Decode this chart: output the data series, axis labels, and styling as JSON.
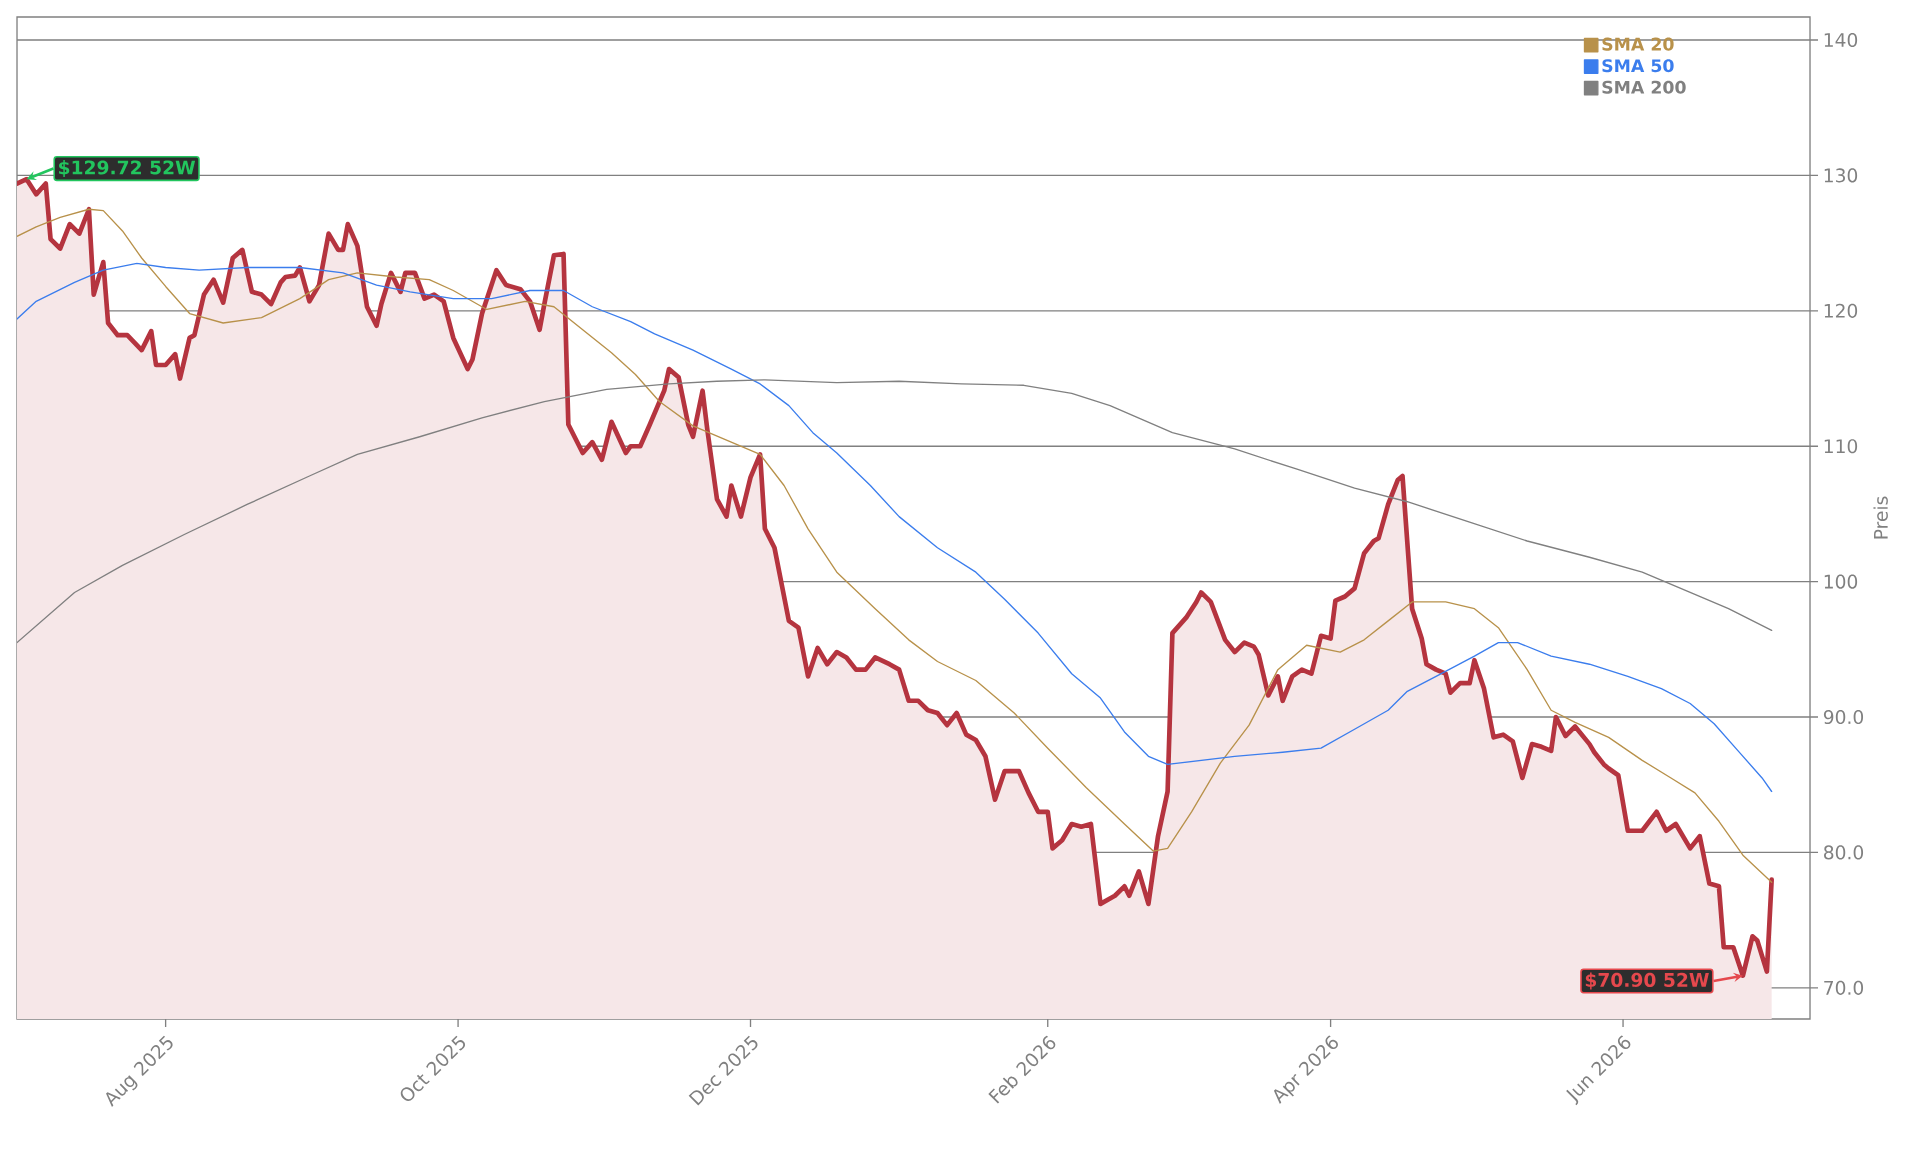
{
  "chart_data": {
    "type": "line",
    "ylabel": "Preis",
    "xlim": [
      "2025-07-01",
      "2026-07-10"
    ],
    "ylim": [
      67.7,
      141.7
    ],
    "xticks": [
      {
        "value": "2025-08-01",
        "label": "Aug 2025"
      },
      {
        "value": "2025-10-01",
        "label": "Oct 2025"
      },
      {
        "value": "2025-12-01",
        "label": "Dec 2025"
      },
      {
        "value": "2026-02-01",
        "label": "Feb 2026"
      },
      {
        "value": "2026-04-01",
        "label": "Apr 2026"
      },
      {
        "value": "2026-06-01",
        "label": "Jun 2026"
      }
    ],
    "yticks": [
      {
        "value": 70,
        "label": "70.0"
      },
      {
        "value": 80,
        "label": "80.0"
      },
      {
        "value": 90,
        "label": "90.0"
      },
      100,
      110,
      120,
      130,
      140
    ],
    "grid": "y",
    "legend": "top right",
    "annotations": [
      {
        "text": "$129.72 52W",
        "x": "2025-07-03",
        "y": 129.72
      },
      {
        "text": "$70.90 52W",
        "x": "2026-06-26",
        "y": 70.9
      }
    ],
    "series": [
      {
        "type": "area",
        "color": "#b5343f",
        "x": [
          "2025-07-01",
          "2025-07-03",
          "2025-07-05",
          "2025-07-07",
          "2025-07-08",
          "2025-07-10",
          "2025-07-12",
          "2025-07-14",
          "2025-07-16",
          "2025-07-17",
          "2025-07-19",
          "2025-07-20",
          "2025-07-22",
          "2025-07-24",
          "2025-07-27",
          "2025-07-29",
          "2025-07-30",
          "2025-08-01",
          "2025-08-03",
          "2025-08-04",
          "2025-08-06",
          "2025-08-07",
          "2025-08-09",
          "2025-08-11",
          "2025-08-13",
          "2025-08-15",
          "2025-08-17",
          "2025-08-19",
          "2025-08-21",
          "2025-08-23",
          "2025-08-25",
          "2025-08-26",
          "2025-08-28",
          "2025-08-29",
          "2025-08-31",
          "2025-09-02",
          "2025-09-04",
          "2025-09-06",
          "2025-09-07",
          "2025-09-08",
          "2025-09-10",
          "2025-09-12",
          "2025-09-14",
          "2025-09-15",
          "2025-09-17",
          "2025-09-19",
          "2025-09-20",
          "2025-09-22",
          "2025-09-24",
          "2025-09-26",
          "2025-09-28",
          "2025-09-30",
          "2025-10-03",
          "2025-10-04",
          "2025-10-06",
          "2025-10-09",
          "2025-10-11",
          "2025-10-14",
          "2025-10-16",
          "2025-10-18",
          "2025-10-19",
          "2025-10-21",
          "2025-10-23",
          "2025-10-24",
          "2025-10-27",
          "2025-10-29",
          "2025-10-31",
          "2025-11-02",
          "2025-11-05",
          "2025-11-06",
          "2025-11-08",
          "2025-11-10",
          "2025-11-13",
          "2025-11-14",
          "2025-11-16",
          "2025-11-18",
          "2025-11-19",
          "2025-11-21",
          "2025-11-22",
          "2025-11-24",
          "2025-11-26",
          "2025-11-27",
          "2025-11-29",
          "2025-12-01",
          "2025-12-03",
          "2025-12-04",
          "2025-12-06",
          "2025-12-09",
          "2025-12-11",
          "2025-12-13",
          "2025-12-15",
          "2025-12-17",
          "2025-12-19",
          "2025-12-21",
          "2025-12-23",
          "2025-12-25",
          "2025-12-27",
          "2025-12-30",
          "2026-01-01",
          "2026-01-03",
          "2026-01-05",
          "2026-01-07",
          "2026-01-09",
          "2026-01-11",
          "2026-01-13",
          "2026-01-15",
          "2026-01-17",
          "2026-01-19",
          "2026-01-21",
          "2026-01-23",
          "2026-01-26",
          "2026-01-28",
          "2026-01-30",
          "2026-02-01",
          "2026-02-02",
          "2026-02-04",
          "2026-02-06",
          "2026-02-08",
          "2026-02-10",
          "2026-02-12",
          "2026-02-15",
          "2026-02-17",
          "2026-02-18",
          "2026-02-20",
          "2026-02-22",
          "2026-02-24",
          "2026-02-26",
          "2026-02-27",
          "2026-03-02",
          "2026-03-04",
          "2026-03-05",
          "2026-03-07",
          "2026-03-10",
          "2026-03-12",
          "2026-03-14",
          "2026-03-16",
          "2026-03-17",
          "2026-03-19",
          "2026-03-21",
          "2026-03-22",
          "2026-03-24",
          "2026-03-26",
          "2026-03-28",
          "2026-03-30",
          "2026-04-01",
          "2026-04-02",
          "2026-04-04",
          "2026-04-06",
          "2026-04-08",
          "2026-04-10",
          "2026-04-11",
          "2026-04-13",
          "2026-04-15",
          "2026-04-16",
          "2026-04-18",
          "2026-04-20",
          "2026-04-21",
          "2026-04-23",
          "2026-04-25",
          "2026-04-26",
          "2026-04-28",
          "2026-04-30",
          "2026-05-01",
          "2026-05-03",
          "2026-05-05",
          "2026-05-07",
          "2026-05-09",
          "2026-05-11",
          "2026-05-13",
          "2026-05-15",
          "2026-05-17",
          "2026-05-18",
          "2026-05-20",
          "2026-05-22",
          "2026-05-25",
          "2026-05-26",
          "2026-05-28",
          "2026-05-29",
          "2026-05-31",
          "2026-06-02",
          "2026-06-05",
          "2026-06-08",
          "2026-06-10",
          "2026-06-12",
          "2026-06-15",
          "2026-06-17",
          "2026-06-19",
          "2026-06-21",
          "2026-06-22",
          "2026-06-24",
          "2026-06-26",
          "2026-06-28",
          "2026-06-29",
          "2026-07-01",
          "2026-07-02"
        ],
        "values": [
          129.4,
          129.72,
          128.6,
          129.4,
          125.3,
          124.6,
          126.4,
          125.7,
          127.5,
          121.2,
          123.6,
          119.1,
          118.2,
          118.2,
          117.1,
          118.5,
          116,
          116,
          116.8,
          115,
          118,
          118.2,
          121.2,
          122.3,
          120.6,
          123.9,
          124.5,
          121.4,
          121.2,
          120.5,
          122.1,
          122.5,
          122.6,
          123.2,
          120.7,
          121.9,
          125.7,
          124.5,
          124.5,
          126.4,
          124.8,
          120.3,
          118.9,
          120.5,
          122.8,
          121.4,
          122.8,
          122.8,
          120.9,
          121.2,
          120.7,
          118,
          115.7,
          116.4,
          119.8,
          123,
          121.9,
          121.6,
          120.7,
          118.6,
          120.5,
          124.1,
          124.2,
          111.6,
          109.5,
          110.3,
          109,
          111.8,
          109.5,
          110,
          110,
          111.6,
          114.1,
          115.7,
          115.1,
          111.6,
          110.7,
          114.1,
          111.2,
          106.1,
          104.8,
          107.1,
          104.8,
          107.7,
          109.4,
          103.9,
          102.5,
          97.1,
          96.6,
          93,
          95.1,
          93.9,
          94.8,
          94.4,
          93.5,
          93.5,
          94.4,
          93.9,
          93.5,
          91.2,
          91.2,
          90.5,
          90.3,
          89.4,
          90.3,
          88.7,
          88.3,
          87.1,
          83.9,
          86,
          86,
          84.4,
          83,
          83,
          80.3,
          80.9,
          82.1,
          81.9,
          82.1,
          76.2,
          76.8,
          77.5,
          76.8,
          78.6,
          76.2,
          81.2,
          84.5,
          96.2,
          97.4,
          98.5,
          99.2,
          98.5,
          95.7,
          94.8,
          95.5,
          95.2,
          94.6,
          91.6,
          93,
          91.2,
          93,
          93.5,
          93.2,
          96,
          95.8,
          98.6,
          98.9,
          99.5,
          102.1,
          103,
          103.2,
          105.7,
          107.5,
          107.8,
          98,
          95.8,
          93.9,
          93.5,
          93.2,
          91.8,
          92.5,
          92.5,
          94.2,
          92.1,
          88.5,
          88.7,
          88.2,
          85.5,
          88,
          87.8,
          87.5,
          90,
          88.6,
          89.3,
          88,
          87.4,
          86.5,
          86.2,
          85.7,
          81.6,
          81.6,
          83,
          81.6,
          82.1,
          80.3,
          81.2,
          77.7,
          77.5,
          73,
          73,
          70.9,
          73.8,
          73.5,
          71.2,
          78
        ]
      },
      {
        "name": "SMA 20",
        "color": "#b8914a",
        "x": [
          "2025-07-01",
          "2025-07-05",
          "2025-07-10",
          "2025-07-16",
          "2025-07-19",
          "2025-07-23",
          "2025-07-27",
          "2025-08-01",
          "2025-08-06",
          "2025-08-13",
          "2025-08-21",
          "2025-08-29",
          "2025-09-04",
          "2025-09-10",
          "2025-09-18",
          "2025-09-25",
          "2025-09-30",
          "2025-10-07",
          "2025-10-15",
          "2025-10-21",
          "2025-10-27",
          "2025-11-02",
          "2025-11-07",
          "2025-11-12",
          "2025-11-19",
          "2025-11-27",
          "2025-12-03",
          "2025-12-08",
          "2025-12-13",
          "2025-12-19",
          "2025-12-27",
          "2026-01-03",
          "2026-01-09",
          "2026-01-17",
          "2026-01-25",
          "2026-02-01",
          "2026-02-09",
          "2026-02-17",
          "2026-02-23",
          "2026-02-26",
          "2026-03-03",
          "2026-03-09",
          "2026-03-15",
          "2026-03-21",
          "2026-03-27",
          "2026-04-03",
          "2026-04-08",
          "2026-04-13",
          "2026-04-18",
          "2026-04-25",
          "2026-05-01",
          "2026-05-06",
          "2026-05-12",
          "2026-05-17",
          "2026-05-22",
          "2026-05-29",
          "2026-06-05",
          "2026-06-11",
          "2026-06-16",
          "2026-06-21",
          "2026-06-26",
          "2026-07-02"
        ],
        "values": [
          125.5,
          126.2,
          126.9,
          127.5,
          127.4,
          125.9,
          123.9,
          121.8,
          119.8,
          119.1,
          119.5,
          120.9,
          122.3,
          122.8,
          122.5,
          122.3,
          121.5,
          120.1,
          120.7,
          120.3,
          118.6,
          116.9,
          115.3,
          113.3,
          111.5,
          110.3,
          109.4,
          107.1,
          103.9,
          100.7,
          98,
          95.7,
          94.1,
          92.7,
          90.3,
          87.7,
          84.8,
          82.1,
          80.1,
          80.3,
          83,
          86.6,
          89.4,
          93.5,
          95.3,
          94.8,
          95.7,
          97.1,
          98.5,
          98.5,
          98,
          96.6,
          93.5,
          90.5,
          89.6,
          88.5,
          86.8,
          85.5,
          84.4,
          82.3,
          79.8,
          77.8
        ]
      },
      {
        "name": "SMA 50",
        "color": "#3b7ded",
        "x": [
          "2025-07-01",
          "2025-07-05",
          "2025-07-13",
          "2025-07-19",
          "2025-07-26",
          "2025-08-01",
          "2025-08-08",
          "2025-08-18",
          "2025-08-29",
          "2025-09-07",
          "2025-09-14",
          "2025-09-21",
          "2025-09-30",
          "2025-10-08",
          "2025-10-16",
          "2025-10-23",
          "2025-10-29",
          "2025-11-06",
          "2025-11-11",
          "2025-11-19",
          "2025-11-27",
          "2025-12-03",
          "2025-12-09",
          "2025-12-14",
          "2025-12-19",
          "2025-12-26",
          "2026-01-01",
          "2026-01-09",
          "2026-01-17",
          "2026-01-23",
          "2026-01-30",
          "2026-02-06",
          "2026-02-12",
          "2026-02-17",
          "2026-02-22",
          "2026-02-26",
          "2026-03-05",
          "2026-03-12",
          "2026-03-22",
          "2026-03-30",
          "2026-04-06",
          "2026-04-13",
          "2026-04-17",
          "2026-04-23",
          "2026-05-01",
          "2026-05-06",
          "2026-05-10",
          "2026-05-17",
          "2026-05-25",
          "2026-06-02",
          "2026-06-09",
          "2026-06-15",
          "2026-06-20",
          "2026-06-25",
          "2026-06-30",
          "2026-07-02"
        ],
        "values": [
          119.4,
          120.7,
          122.1,
          123,
          123.5,
          123.2,
          123,
          123.2,
          123.2,
          122.8,
          121.9,
          121.4,
          120.9,
          120.9,
          121.5,
          121.5,
          120.3,
          119.2,
          118.3,
          117.1,
          115.7,
          114.6,
          113,
          111,
          109.5,
          107.1,
          104.8,
          102.5,
          100.7,
          98.7,
          96.2,
          93.2,
          91.4,
          88.9,
          87.1,
          86.5,
          86.8,
          87.1,
          87.4,
          87.7,
          89.1,
          90.5,
          91.9,
          93,
          94.5,
          95.5,
          95.5,
          94.5,
          93.9,
          93,
          92.1,
          91,
          89.5,
          87.5,
          85.5,
          84.5
        ]
      },
      {
        "name": "SMA 200",
        "color": "#808080",
        "x": [
          "2025-07-01",
          "2025-07-13",
          "2025-07-23",
          "2025-08-05",
          "2025-08-18",
          "2025-08-31",
          "2025-09-10",
          "2025-09-23",
          "2025-10-06",
          "2025-10-19",
          "2025-11-01",
          "2025-11-14",
          "2025-11-24",
          "2025-12-04",
          "2025-12-19",
          "2026-01-01",
          "2026-01-14",
          "2026-01-27",
          "2026-02-06",
          "2026-02-14",
          "2026-02-27",
          "2026-03-12",
          "2026-03-25",
          "2026-04-06",
          "2026-04-17",
          "2026-04-30",
          "2026-05-12",
          "2026-05-25",
          "2026-06-05",
          "2026-06-15",
          "2026-06-23",
          "2026-07-02"
        ],
        "values": [
          95.5,
          99.2,
          101.2,
          103.5,
          105.7,
          107.8,
          109.4,
          110.7,
          112.1,
          113.3,
          114.2,
          114.6,
          114.8,
          114.9,
          114.7,
          114.8,
          114.6,
          114.5,
          113.9,
          113,
          111,
          109.8,
          108.3,
          106.9,
          105.9,
          104.4,
          103,
          101.8,
          100.7,
          99.2,
          98,
          96.4
        ]
      }
    ]
  }
}
